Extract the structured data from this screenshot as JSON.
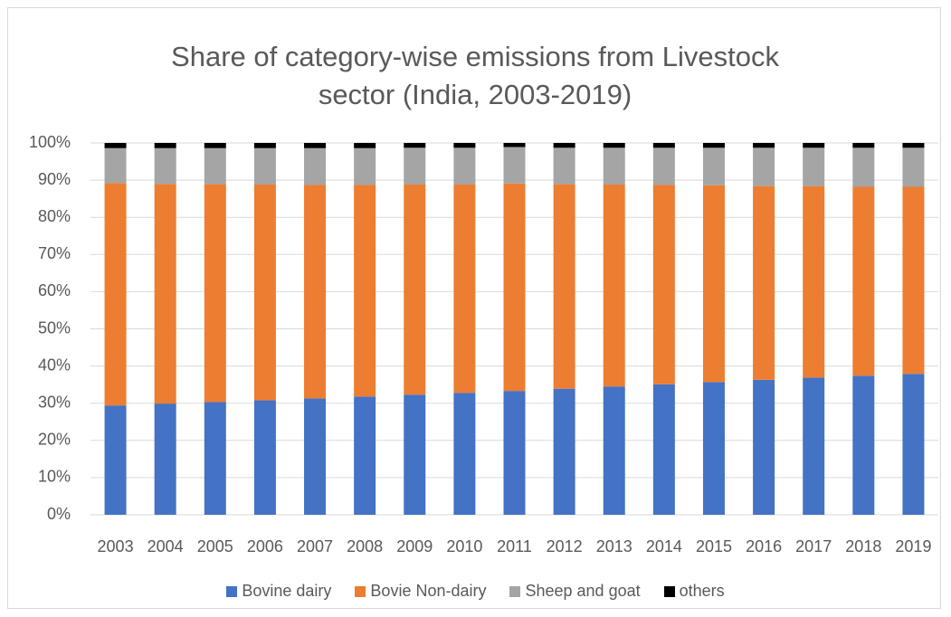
{
  "chart_data": {
    "type": "stacked_bar",
    "title": "Share of category-wise emissions from Livestock sector (India, 2003-2019)",
    "categories": [
      "2003",
      "2004",
      "2005",
      "2006",
      "2007",
      "2008",
      "2009",
      "2010",
      "2011",
      "2012",
      "2013",
      "2014",
      "2015",
      "2016",
      "2017",
      "2018",
      "2019"
    ],
    "series": [
      {
        "name": "Bovine dairy",
        "color": "#4472c4",
        "values": [
          29.4,
          29.9,
          30.3,
          30.8,
          31.3,
          31.8,
          32.3,
          32.8,
          33.3,
          33.9,
          34.5,
          35.1,
          35.7,
          36.3,
          36.9,
          37.4,
          37.9
        ]
      },
      {
        "name": "Bovie Non-dairy",
        "color": "#ed7d31",
        "values": [
          59.8,
          59.1,
          58.6,
          58.0,
          57.4,
          56.9,
          56.5,
          56.0,
          55.8,
          55.0,
          54.3,
          53.6,
          52.9,
          52.1,
          51.5,
          50.8,
          50.3
        ]
      },
      {
        "name": "Sheep and goat",
        "color": "#a5a5a5",
        "values": [
          9.4,
          9.6,
          9.7,
          9.8,
          9.9,
          9.9,
          9.9,
          9.9,
          9.8,
          9.8,
          9.9,
          10.0,
          10.1,
          10.3,
          10.3,
          10.5,
          10.5
        ]
      },
      {
        "name": "others",
        "color": "#000000",
        "values": [
          1.4,
          1.4,
          1.4,
          1.4,
          1.4,
          1.4,
          1.3,
          1.3,
          1.1,
          1.3,
          1.3,
          1.3,
          1.3,
          1.3,
          1.3,
          1.3,
          1.3
        ]
      }
    ],
    "ylim": [
      0,
      100
    ],
    "yticks": [
      {
        "value": 0,
        "label": "0%"
      },
      {
        "value": 10,
        "label": "10%"
      },
      {
        "value": 20,
        "label": "20%"
      },
      {
        "value": 30,
        "label": "30%"
      },
      {
        "value": 40,
        "label": "40%"
      },
      {
        "value": 50,
        "label": "50%"
      },
      {
        "value": 60,
        "label": "60%"
      },
      {
        "value": 70,
        "label": "70%"
      },
      {
        "value": 80,
        "label": "80%"
      },
      {
        "value": 90,
        "label": "90%"
      },
      {
        "value": 100,
        "label": "100%"
      }
    ],
    "grid": true,
    "legend": "bottom"
  }
}
